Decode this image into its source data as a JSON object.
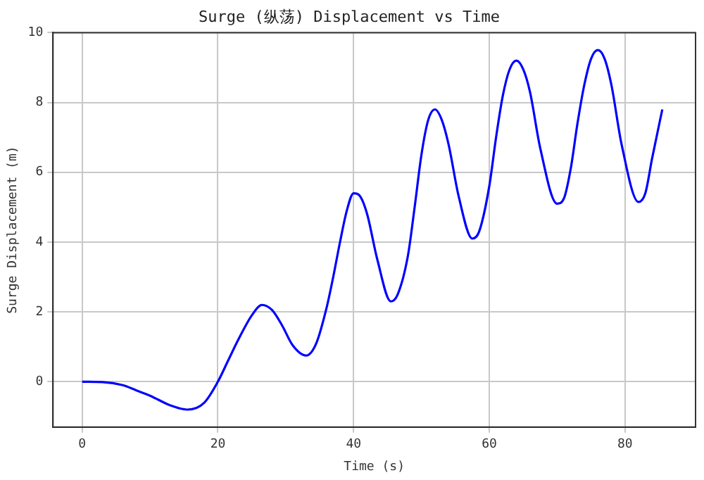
{
  "chart_data": {
    "type": "line",
    "title": "Surge (纵荡) Displacement vs Time",
    "xlabel": "Time (s)",
    "ylabel": "Surge Displacement (m)",
    "x": [
      0,
      3,
      6,
      8,
      10,
      13,
      15.5,
      18,
      20,
      21.5,
      23,
      25,
      26.5,
      28,
      29.5,
      31,
      33,
      34.5,
      36,
      37,
      38,
      39,
      40,
      41,
      42,
      43.5,
      45.5,
      46.5,
      48,
      49,
      50,
      51,
      52,
      53,
      54,
      55.5,
      57.5,
      58.5,
      60,
      61,
      62,
      63,
      64,
      65,
      66,
      67.5,
      70,
      71,
      72,
      73,
      74,
      75,
      76,
      77,
      78,
      79.5,
      82,
      83,
      84,
      85.5
    ],
    "series": [
      {
        "color": "#0000ff",
        "values": [
          0,
          -0.01,
          -0.1,
          -0.25,
          -0.4,
          -0.68,
          -0.8,
          -0.6,
          0,
          0.6,
          1.2,
          1.9,
          2.2,
          2.05,
          1.6,
          1.05,
          0.75,
          1.1,
          2.1,
          3.0,
          4.0,
          4.9,
          5.4,
          5.3,
          4.8,
          3.5,
          2.3,
          2.5,
          3.6,
          5.0,
          6.5,
          7.5,
          7.8,
          7.5,
          6.8,
          5.3,
          4.1,
          4.3,
          5.6,
          7.0,
          8.2,
          8.95,
          9.2,
          8.95,
          8.3,
          6.7,
          5.1,
          5.25,
          6.1,
          7.4,
          8.5,
          9.25,
          9.5,
          9.25,
          8.5,
          6.8,
          5.15,
          5.4,
          6.4,
          7.8
        ]
      }
    ],
    "xlim": [
      -4.3,
      90.4
    ],
    "xticks": [
      0,
      20,
      40,
      60,
      80
    ],
    "ylim": [
      -1.3,
      10
    ],
    "yticks": [
      0,
      2,
      4,
      6,
      8,
      10
    ],
    "grid": true,
    "legend": false,
    "marker": "none",
    "line_style": "solid"
  }
}
